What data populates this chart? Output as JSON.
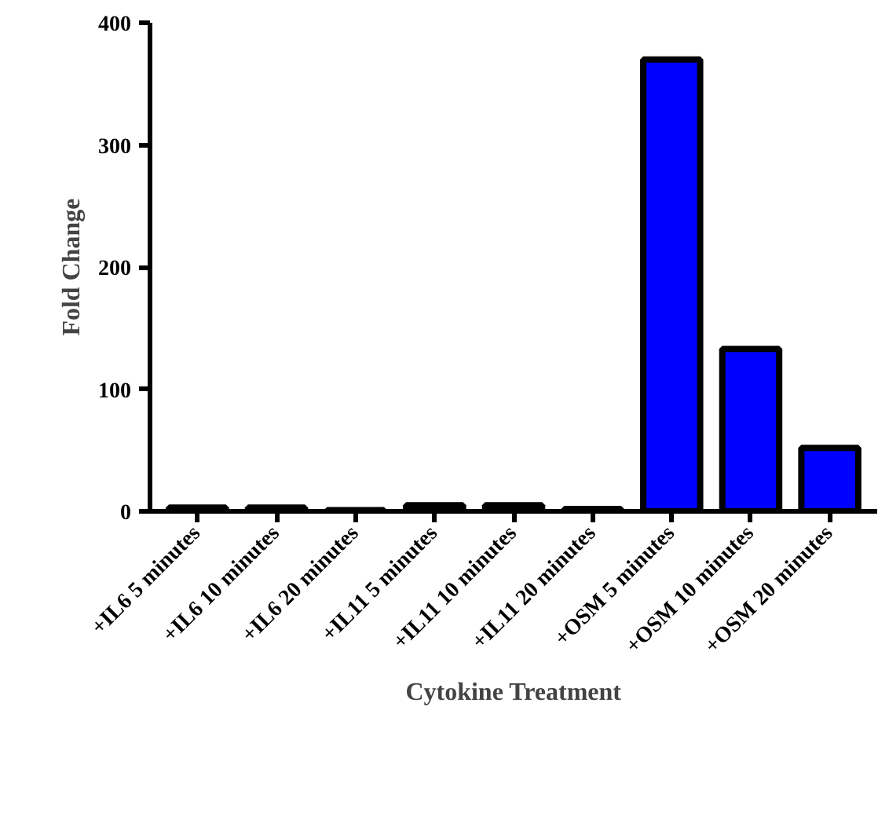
{
  "chart_data": {
    "type": "bar",
    "xlabel": "Cytokine Treatment",
    "ylabel": "Fold Change",
    "categories": [
      "+IL6 5 minutes",
      "+IL6 10 minutes",
      "+IL6 20 minutes",
      "+IL11 5 minutes",
      "+IL11 10 minutes",
      "+IL11 20 minutes",
      "+OSM 5 minutes",
      "+OSM 10 minutes",
      "+OSM 20 minutes"
    ],
    "values": [
      3,
      3,
      1,
      5,
      5,
      2,
      370,
      133,
      52
    ],
    "colors": [
      "#5a0000",
      "#5a0000",
      "#5a0000",
      "#5a0000",
      "#5a0000",
      "#5a0000",
      "#0000ff",
      "#0000ff",
      "#0000ff"
    ],
    "ylim": [
      0,
      400
    ],
    "yticks": [
      0,
      100,
      200,
      300,
      400
    ],
    "grid": false
  }
}
